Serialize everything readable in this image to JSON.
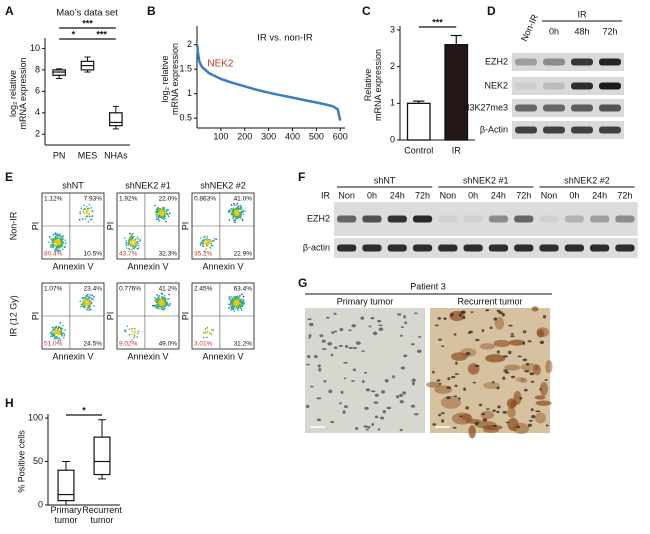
{
  "panel_labels": [
    "A",
    "B",
    "C",
    "D",
    "E",
    "F",
    "G",
    "H"
  ],
  "chart_data": [
    {
      "type": "box",
      "title": "Mao’s data set",
      "ylabel": "log₂ relative\nmRNA expression",
      "categories": [
        "PN",
        "MES",
        "NHAs"
      ],
      "boxes": [
        {
          "min": 7.2,
          "q1": 7.5,
          "median": 7.8,
          "q3": 8.0,
          "max": 8.1
        },
        {
          "min": 7.8,
          "q1": 8.0,
          "median": 8.4,
          "q3": 8.8,
          "max": 9.2
        },
        {
          "min": 2.5,
          "q1": 2.8,
          "median": 3.1,
          "q3": 4.0,
          "max": 4.6
        }
      ],
      "color": "#ffffff",
      "ylim": [
        1,
        10.6
      ],
      "yticks": [
        2,
        4,
        6,
        8,
        10
      ],
      "significance": [
        {
          "label": "***",
          "between": [
            "PN",
            "NHAs"
          ]
        },
        {
          "label": "*",
          "between": [
            "PN",
            "MES"
          ]
        },
        {
          "label": "***",
          "between": [
            "MES",
            "NHAs"
          ]
        }
      ]
    },
    {
      "type": "line",
      "title": "IR vs. non-IR",
      "ylabel": "log₂ relative\nmRNA expression",
      "x": [
        1,
        5,
        10,
        20,
        50,
        100,
        150,
        200,
        250,
        300,
        350,
        400,
        450,
        500,
        540,
        570,
        590,
        600
      ],
      "series": [
        {
          "color": "#3a7dc0",
          "values": [
            2.0,
            1.8,
            1.65,
            1.55,
            1.42,
            1.3,
            1.22,
            1.15,
            1.08,
            1.02,
            0.97,
            0.92,
            0.87,
            0.82,
            0.78,
            0.74,
            0.68,
            0.45
          ]
        }
      ],
      "annotation": "NEK2",
      "annotation_color": "#c0392b",
      "xlim": [
        0,
        620
      ],
      "ylim": [
        0.3,
        2.3
      ],
      "xticks": [
        100,
        200,
        300,
        400,
        500,
        600
      ],
      "yticks": [
        0.5,
        1,
        1.5,
        2
      ]
    },
    {
      "type": "bar",
      "ylabel": "Relative\nmRNA expression",
      "categories": [
        "Control",
        "IR"
      ],
      "values": [
        1.0,
        2.6
      ],
      "errors": [
        0.06,
        0.25
      ],
      "colors": [
        "#ffffff",
        "#231815"
      ],
      "ylim": [
        0,
        3
      ],
      "yticks": [
        0,
        1,
        2,
        3
      ],
      "significance": [
        {
          "label": "***",
          "between": [
            "Control",
            "IR"
          ]
        }
      ]
    },
    {
      "type": "box",
      "ylabel": "% Positive cells",
      "categories": [
        "Primary\ntumor",
        "Recurrent\ntumor"
      ],
      "boxes": [
        {
          "min": 0,
          "q1": 5,
          "median": 12,
          "q3": 40,
          "max": 50
        },
        {
          "min": 30,
          "q1": 35,
          "median": 50,
          "q3": 78,
          "max": 98
        }
      ],
      "color": "#ffffff",
      "ylim": [
        0,
        100
      ],
      "yticks": [
        0,
        50,
        100
      ],
      "significance": [
        {
          "label": "*",
          "between": [
            "Primary\ntumor",
            "Recurrent\ntumor"
          ]
        }
      ]
    }
  ],
  "blot_d": {
    "columns": [
      "Non-IR",
      "0h",
      "48h",
      "72h"
    ],
    "group_label": "IR",
    "rows": [
      "EZH2",
      "NEK2",
      "H3K27me3",
      "β-Actin"
    ]
  },
  "flow_e": {
    "columns": [
      "shNT",
      "shNEK2 #1",
      "shNEK2 #2"
    ],
    "rows": [
      "Non-IR",
      "IR (12 Gy)"
    ],
    "x_label": "Annexin V",
    "y_label": "PI",
    "quadrants": [
      [
        [
          "1.12%",
          "7.93%",
          "80.4%",
          "10.5%"
        ],
        [
          "1.92%",
          "22.0%",
          "43.7%",
          "32.3%"
        ],
        [
          "0.863%",
          "41.0%",
          "35.2%",
          "22.9%"
        ]
      ],
      [
        [
          "1.07%",
          "23.4%",
          "51.0%",
          "24.5%"
        ],
        [
          "0.776%",
          "41.2%",
          "9.02%",
          "49.0%"
        ],
        [
          "2.45%",
          "63.4%",
          "3.01%",
          "31.2%"
        ]
      ]
    ]
  },
  "blot_f": {
    "treatment_label": "IR",
    "groups": [
      "shNT",
      "shNEK2 #1",
      "shNEK2 #2"
    ],
    "lanes": [
      "Non",
      "0h",
      "24h",
      "72h"
    ],
    "rows": [
      "EZH2",
      "β-actin"
    ]
  },
  "histology_g": {
    "title": "Patient 3",
    "images": [
      "Primary tumor",
      "Recurrent tumor"
    ]
  }
}
